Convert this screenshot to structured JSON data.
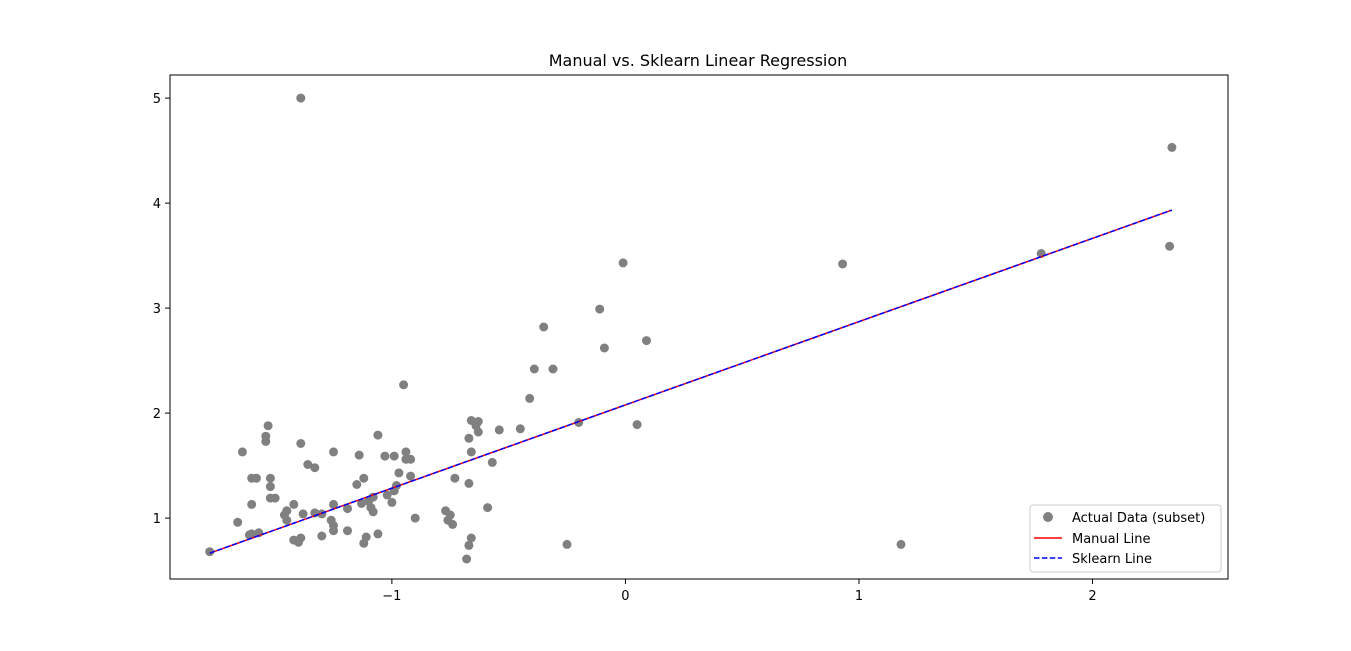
{
  "chart_data": {
    "type": "scatter",
    "title": "Manual vs. Sklearn Linear Regression",
    "xlabel": "",
    "ylabel": "",
    "xlim": [
      -1.95,
      2.58
    ],
    "ylim": [
      0.42,
      5.22
    ],
    "xticks": [
      -1,
      0,
      1,
      2
    ],
    "xtick_labels": [
      "−1",
      "0",
      "1",
      "2"
    ],
    "yticks": [
      1,
      2,
      3,
      4,
      5
    ],
    "ytick_labels": [
      "1",
      "2",
      "3",
      "4",
      "5"
    ],
    "grid": false,
    "legend_position": "lower-right",
    "colors": {
      "scatter": "#808080",
      "manual": "#ff0000",
      "sklearn": "#0000ff"
    },
    "legend": {
      "scatter": "Actual Data (subset)",
      "manual": "Manual Line",
      "sklearn": "Sklearn Line"
    },
    "scatter_points": [
      [
        -1.39,
        5.0
      ],
      [
        2.34,
        4.53
      ],
      [
        2.33,
        3.59
      ],
      [
        1.78,
        3.52
      ],
      [
        0.93,
        3.42
      ],
      [
        1.18,
        0.75
      ],
      [
        -0.01,
        3.43
      ],
      [
        -0.11,
        2.99
      ],
      [
        -0.09,
        2.62
      ],
      [
        0.09,
        2.69
      ],
      [
        0.05,
        1.89
      ],
      [
        -0.35,
        2.82
      ],
      [
        -0.39,
        2.42
      ],
      [
        -0.31,
        2.42
      ],
      [
        -0.41,
        2.14
      ],
      [
        -0.2,
        1.91
      ],
      [
        -0.45,
        1.85
      ],
      [
        -0.54,
        1.84
      ],
      [
        -0.57,
        1.53
      ],
      [
        -0.59,
        1.1
      ],
      [
        -0.25,
        0.75
      ],
      [
        -0.66,
        1.93
      ],
      [
        -0.63,
        1.92
      ],
      [
        -0.64,
        1.88
      ],
      [
        -0.63,
        1.82
      ],
      [
        -0.67,
        1.76
      ],
      [
        -0.66,
        1.63
      ],
      [
        -0.67,
        1.33
      ],
      [
        -0.73,
        1.38
      ],
      [
        -0.77,
        1.07
      ],
      [
        -0.75,
        1.03
      ],
      [
        -0.76,
        0.98
      ],
      [
        -0.74,
        0.94
      ],
      [
        -0.66,
        0.81
      ],
      [
        -0.67,
        0.74
      ],
      [
        -0.68,
        0.61
      ],
      [
        -0.95,
        2.27
      ],
      [
        -0.94,
        1.63
      ],
      [
        -0.94,
        1.56
      ],
      [
        -0.92,
        1.56
      ],
      [
        -0.97,
        1.43
      ],
      [
        -0.92,
        1.4
      ],
      [
        -0.99,
        1.59
      ],
      [
        -1.03,
        1.59
      ],
      [
        -0.98,
        1.31
      ],
      [
        -0.99,
        1.26
      ],
      [
        -1.02,
        1.22
      ],
      [
        -1.0,
        1.15
      ],
      [
        -0.9,
        1.0
      ],
      [
        -1.06,
        1.79
      ],
      [
        -1.06,
        0.85
      ],
      [
        -1.14,
        1.6
      ],
      [
        -1.12,
        1.38
      ],
      [
        -1.15,
        1.32
      ],
      [
        -1.08,
        1.2
      ],
      [
        -1.1,
        1.16
      ],
      [
        -1.13,
        1.14
      ],
      [
        -1.09,
        1.1
      ],
      [
        -1.08,
        1.06
      ],
      [
        -1.11,
        0.82
      ],
      [
        -1.12,
        0.76
      ],
      [
        -1.25,
        1.63
      ],
      [
        -1.25,
        1.13
      ],
      [
        -1.19,
        1.09
      ],
      [
        -1.26,
        0.98
      ],
      [
        -1.25,
        0.93
      ],
      [
        -1.25,
        0.88
      ],
      [
        -1.19,
        0.88
      ],
      [
        -1.3,
        0.83
      ],
      [
        -1.33,
        1.48
      ],
      [
        -1.36,
        1.51
      ],
      [
        -1.3,
        1.04
      ],
      [
        -1.33,
        1.05
      ],
      [
        -1.39,
        1.71
      ],
      [
        -1.38,
        1.04
      ],
      [
        -1.39,
        0.81
      ],
      [
        -1.4,
        0.77
      ],
      [
        -1.42,
        0.79
      ],
      [
        -1.42,
        1.13
      ],
      [
        -1.45,
        1.07
      ],
      [
        -1.46,
        1.03
      ],
      [
        -1.45,
        0.98
      ],
      [
        -1.53,
        1.88
      ],
      [
        -1.54,
        1.78
      ],
      [
        -1.54,
        1.73
      ],
      [
        -1.52,
        1.38
      ],
      [
        -1.52,
        1.3
      ],
      [
        -1.52,
        1.19
      ],
      [
        -1.5,
        1.19
      ],
      [
        -1.58,
        1.38
      ],
      [
        -1.6,
        1.38
      ],
      [
        -1.64,
        1.63
      ],
      [
        -1.6,
        1.13
      ],
      [
        -1.57,
        0.86
      ],
      [
        -1.6,
        0.85
      ],
      [
        -1.61,
        0.84
      ],
      [
        -1.66,
        0.96
      ],
      [
        -1.78,
        0.68
      ]
    ],
    "manual_line": {
      "x": [
        -1.78,
        2.34
      ],
      "y": [
        0.666,
        3.934
      ]
    },
    "sklearn_line": {
      "x": [
        -1.78,
        2.34
      ],
      "y": [
        0.666,
        3.934
      ]
    }
  }
}
